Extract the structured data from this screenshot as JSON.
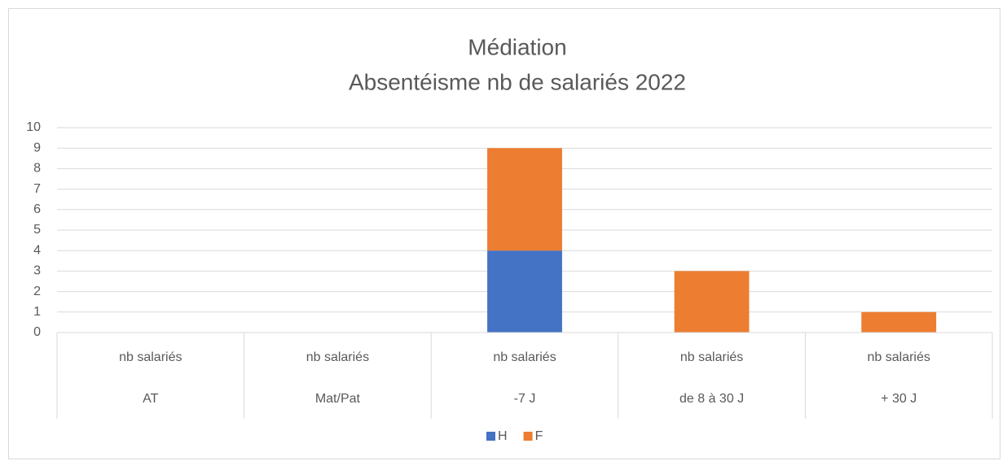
{
  "chart_data": {
    "type": "stacked_bar",
    "title": "Médiation",
    "subtitle": "Absentéisme nb de salariés 2022",
    "categories": [
      "nb salariés",
      "nb salariés",
      "nb salariés",
      "nb salariés",
      "nb salariés"
    ],
    "category_groups": [
      "AT",
      "Mat/Pat",
      "-7 J",
      "de 8 à 30 J",
      "+ 30 J"
    ],
    "series": [
      {
        "name": "H",
        "color": "#4472c4",
        "values": [
          0,
          0,
          4,
          0,
          0
        ]
      },
      {
        "name": "F",
        "color": "#ed7d31",
        "values": [
          0,
          0,
          5,
          3,
          1
        ]
      }
    ],
    "ylim": [
      0,
      10
    ],
    "yticks": [
      0,
      1,
      2,
      3,
      4,
      5,
      6,
      7,
      8,
      9,
      10
    ],
    "grid": true,
    "legend": "bottom"
  }
}
